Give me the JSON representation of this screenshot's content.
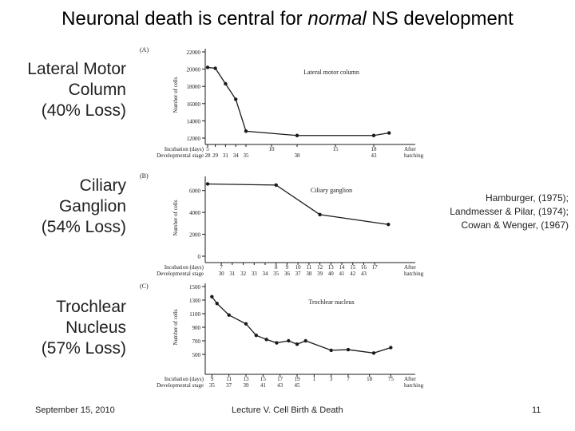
{
  "slide": {
    "title_before": "Neuronal death is central for ",
    "title_italic": "normal",
    "title_after": " NS development",
    "footer_date": "September 15, 2010",
    "footer_title": "Lecture V. Cell Birth & Death",
    "page_number": "11"
  },
  "labels": {
    "lateral": [
      "Lateral Motor",
      "Column",
      "(40%  Loss)"
    ],
    "ciliary": [
      "Ciliary",
      "Ganglion",
      "(54% Loss)"
    ],
    "trochlear": [
      "Trochlear",
      "Nucleus",
      "(57% Loss)"
    ]
  },
  "citations": [
    "Hamburger, (1975);",
    "Landmesser & Pilar, (1974);",
    "Cowan & Wenger, (1967)"
  ],
  "colors": {
    "ink": "#1a1a1a",
    "text": "#222222"
  },
  "chart_data": [
    {
      "type": "line",
      "panel": "(A)",
      "title": "Lateral motor column",
      "ylabel": "Number of cells",
      "xlabel_incubation": "Incubation (days)",
      "xlabel_stage": "Developmental stage",
      "ylim": [
        12000,
        22000
      ],
      "y_ticks": [
        "12000",
        "14000",
        "16000",
        "18000",
        "20000",
        "22000"
      ],
      "x_ticks": [
        {
          "day": 5,
          "inc": "5",
          "stage": "28"
        },
        {
          "day": 5.6,
          "inc": "",
          "stage": "29"
        },
        {
          "day": 6.4,
          "inc": "",
          "stage": "31"
        },
        {
          "day": 7.2,
          "inc": "",
          "stage": "34"
        },
        {
          "day": 8,
          "inc": "",
          "stage": "35"
        },
        {
          "day": 10,
          "inc": "10",
          "stage": ""
        },
        {
          "day": 12,
          "inc": "",
          "stage": "38"
        },
        {
          "day": 15,
          "inc": "15",
          "stage": ""
        },
        {
          "day": 18,
          "inc": "18",
          "stage": "43"
        }
      ],
      "after_hatching": [
        "After",
        "hatching"
      ],
      "x": [
        5,
        5.6,
        6.4,
        7.2,
        8,
        12,
        18,
        19.2
      ],
      "y": [
        20200,
        20100,
        18300,
        16500,
        12800,
        12300,
        12300,
        12600
      ]
    },
    {
      "type": "line",
      "panel": "(B)",
      "title": "Ciliary ganglion",
      "ylabel": "Number of cells",
      "xlabel_incubation": "Incubation (days)",
      "xlabel_stage": "Developmental stage",
      "ylim": [
        0,
        7000
      ],
      "y_ticks": [
        "0",
        "2000",
        "4000",
        "6000"
      ],
      "x_ticks": [
        {
          "day": 7,
          "inc": "7",
          "stage": "30"
        },
        {
          "day": 7.8,
          "inc": "",
          "stage": "31"
        },
        {
          "day": 8.6,
          "inc": "",
          "stage": "32"
        },
        {
          "day": 9.4,
          "inc": "",
          "stage": "33"
        },
        {
          "day": 10.2,
          "inc": "",
          "stage": "34"
        },
        {
          "day": 11,
          "inc": "8",
          "stage": "35"
        },
        {
          "day": 11.8,
          "inc": "9",
          "stage": "36"
        },
        {
          "day": 12.6,
          "inc": "10",
          "stage": "37"
        },
        {
          "day": 13.4,
          "inc": "11",
          "stage": "38"
        },
        {
          "day": 14.2,
          "inc": "12",
          "stage": "39"
        },
        {
          "day": 15,
          "inc": "13",
          "stage": "40"
        },
        {
          "day": 15.8,
          "inc": "14",
          "stage": "41"
        },
        {
          "day": 16.6,
          "inc": "15",
          "stage": "42"
        },
        {
          "day": 17.4,
          "inc": "16",
          "stage": "43"
        },
        {
          "day": 18.2,
          "inc": "17",
          "stage": ""
        }
      ],
      "after_hatching": [
        "After",
        "hatching"
      ],
      "x": [
        6,
        11,
        14.2,
        19.2
      ],
      "y": [
        6600,
        6500,
        3800,
        2900
      ]
    },
    {
      "type": "line",
      "panel": "(C)",
      "title": "Trochlear nucleus",
      "ylabel": "Number of cells",
      "xlabel_incubation": "Incubation (days)",
      "xlabel_stage": "Developmental stage",
      "ylim": [
        300,
        1500
      ],
      "y_ticks": [
        "500",
        "700",
        "900",
        "1100",
        "1300",
        "1500"
      ],
      "x_ticks": [
        {
          "day": 9,
          "inc": "9",
          "stage": "35"
        },
        {
          "day": 11,
          "inc": "11",
          "stage": "37"
        },
        {
          "day": 13,
          "inc": "13",
          "stage": "39"
        },
        {
          "day": 15,
          "inc": "15",
          "stage": "41"
        },
        {
          "day": 17,
          "inc": "17",
          "stage": "43"
        },
        {
          "day": 19,
          "inc": "19",
          "stage": "45"
        },
        {
          "day": 21,
          "inc": "1",
          "stage": ""
        },
        {
          "day": 23,
          "inc": "3",
          "stage": ""
        },
        {
          "day": 25,
          "inc": "7",
          "stage": ""
        },
        {
          "day": 27.5,
          "inc": "18",
          "stage": ""
        },
        {
          "day": 30,
          "inc": "75",
          "stage": ""
        }
      ],
      "after_hatching": [
        "After",
        "hatching"
      ],
      "x": [
        9,
        9.6,
        11,
        13,
        14.2,
        15.4,
        16.6,
        18,
        19,
        20,
        23,
        25,
        28,
        30
      ],
      "y": [
        1350,
        1250,
        1080,
        950,
        780,
        720,
        670,
        700,
        650,
        700,
        560,
        570,
        520,
        600
      ]
    }
  ]
}
